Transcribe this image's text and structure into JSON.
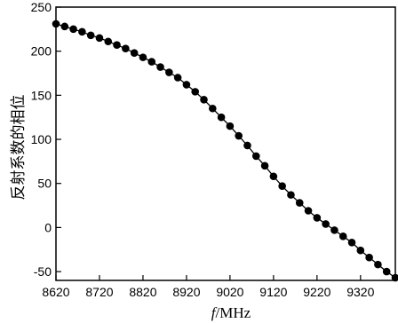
{
  "chart_data": {
    "type": "line",
    "title": "",
    "xlabel": "f /MHz",
    "xlabel_var": "f",
    "xlabel_unit": "/MHz",
    "ylabel": "反射系数的相位",
    "xlim": [
      8620,
      9400
    ],
    "ylim": [
      -60,
      250
    ],
    "x_ticks": [
      "8620",
      "8720",
      "8820",
      "8920",
      "9020",
      "9120",
      "9220",
      "9320"
    ],
    "y_ticks": [
      "250",
      "200",
      "150",
      "100",
      "50",
      "0",
      "-50"
    ],
    "grid": false,
    "legend": "none",
    "series": [
      {
        "marker": "circle-filled",
        "color": "#000000",
        "x": [
          8620,
          8640,
          8660,
          8680,
          8700,
          8720,
          8740,
          8760,
          8780,
          8800,
          8820,
          8840,
          8860,
          8880,
          8900,
          8920,
          8940,
          8960,
          8980,
          9000,
          9020,
          9040,
          9060,
          9080,
          9100,
          9120,
          9140,
          9160,
          9180,
          9200,
          9220,
          9240,
          9260,
          9280,
          9300,
          9320,
          9340,
          9360,
          9380,
          9400
        ],
        "y": [
          231,
          228,
          225,
          222,
          218,
          215,
          211,
          207,
          203,
          198,
          193,
          188,
          182,
          176,
          170,
          162,
          154,
          145,
          135,
          125,
          115,
          104,
          93,
          81,
          70,
          58,
          47,
          37,
          28,
          19,
          11,
          4,
          -3,
          -10,
          -17,
          -26,
          -34,
          -42,
          -50,
          -57
        ]
      }
    ]
  }
}
